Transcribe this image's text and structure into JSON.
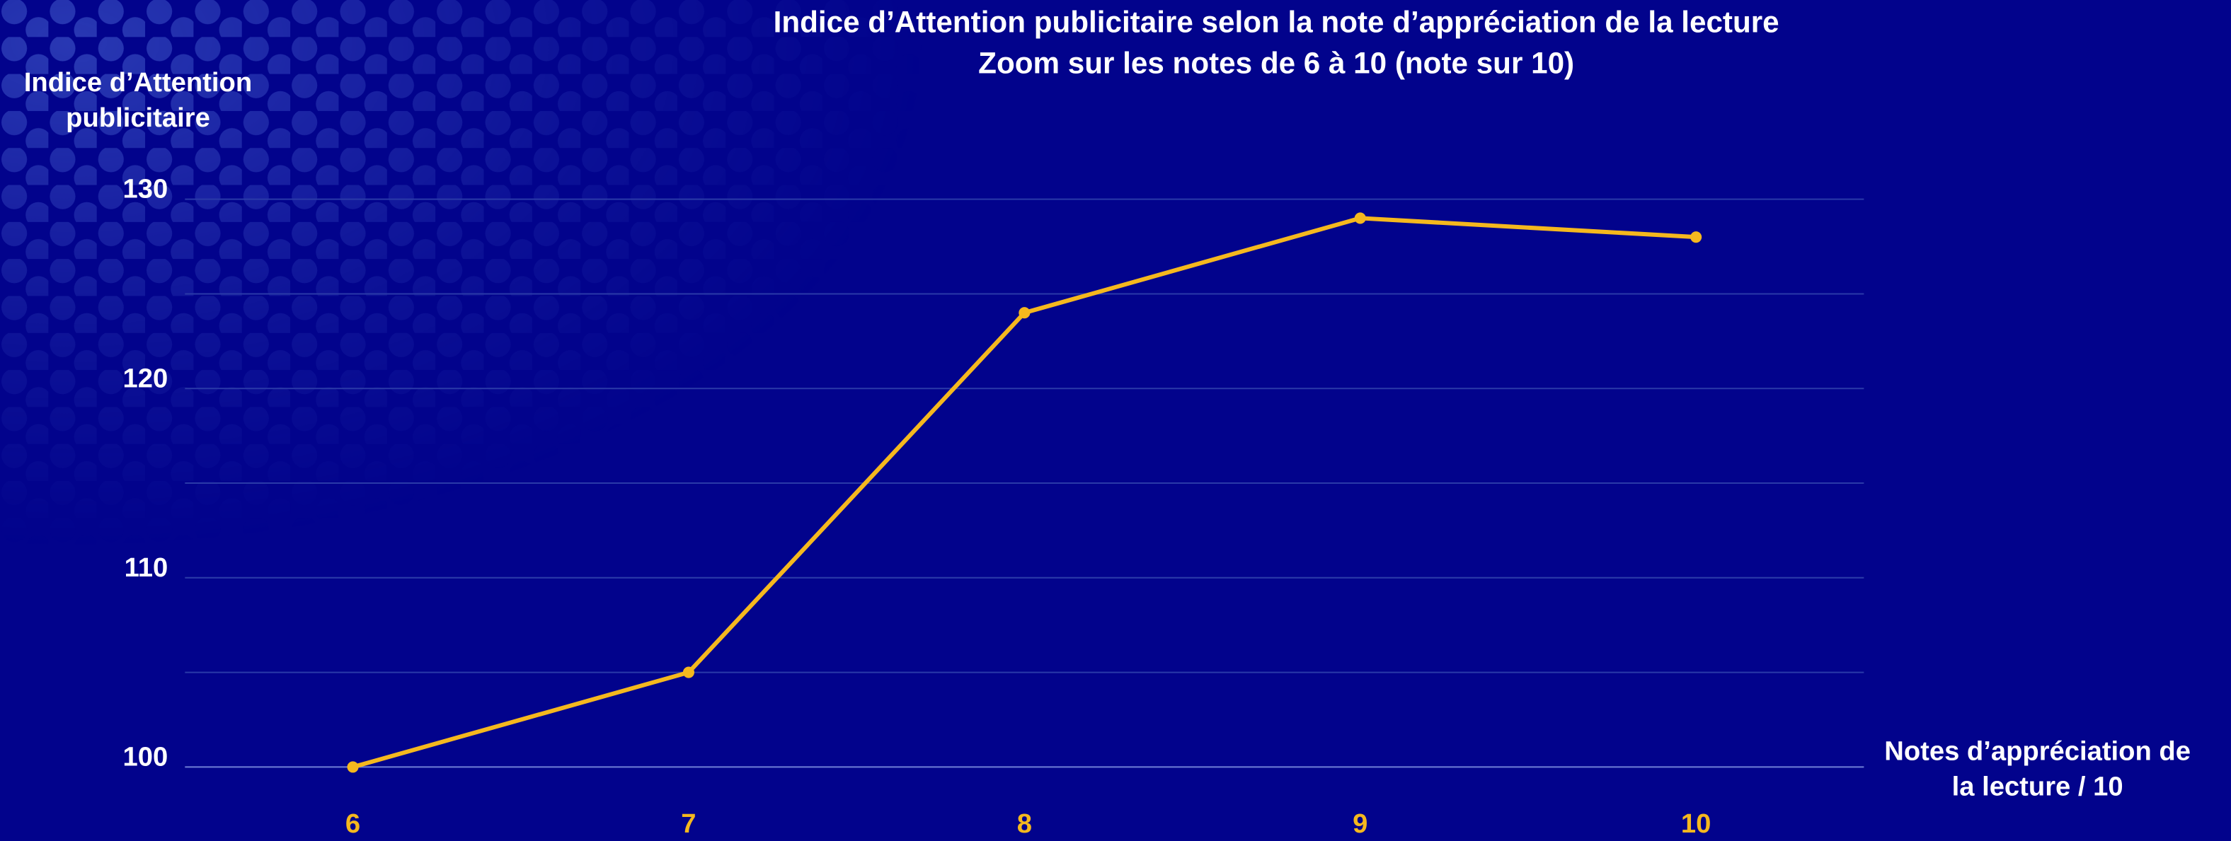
{
  "chart_data": {
    "type": "line",
    "title": "Indice d’Attention publicitaire selon la note d’appréciation de la lecture",
    "subtitle": "Zoom sur les notes de 6 à 10 (note sur 10)",
    "y_label": [
      "Indice d’Attention",
      "publicitaire"
    ],
    "x_label": [
      "Notes d’appréciation de",
      "la lecture / 10"
    ],
    "x": [
      6,
      7,
      8,
      9,
      10
    ],
    "series": [
      {
        "color": "#f5b81e",
        "values": [
          100,
          105,
          124,
          129,
          128
        ]
      }
    ],
    "xlim": [
      5.5,
      10.5
    ],
    "xticks": [
      6,
      7,
      8,
      9,
      10
    ],
    "ylim": [
      100,
      130
    ],
    "yticks": [
      100,
      110,
      120,
      130
    ],
    "minor_yticks": [
      105,
      115,
      125
    ],
    "grid": true
  }
}
